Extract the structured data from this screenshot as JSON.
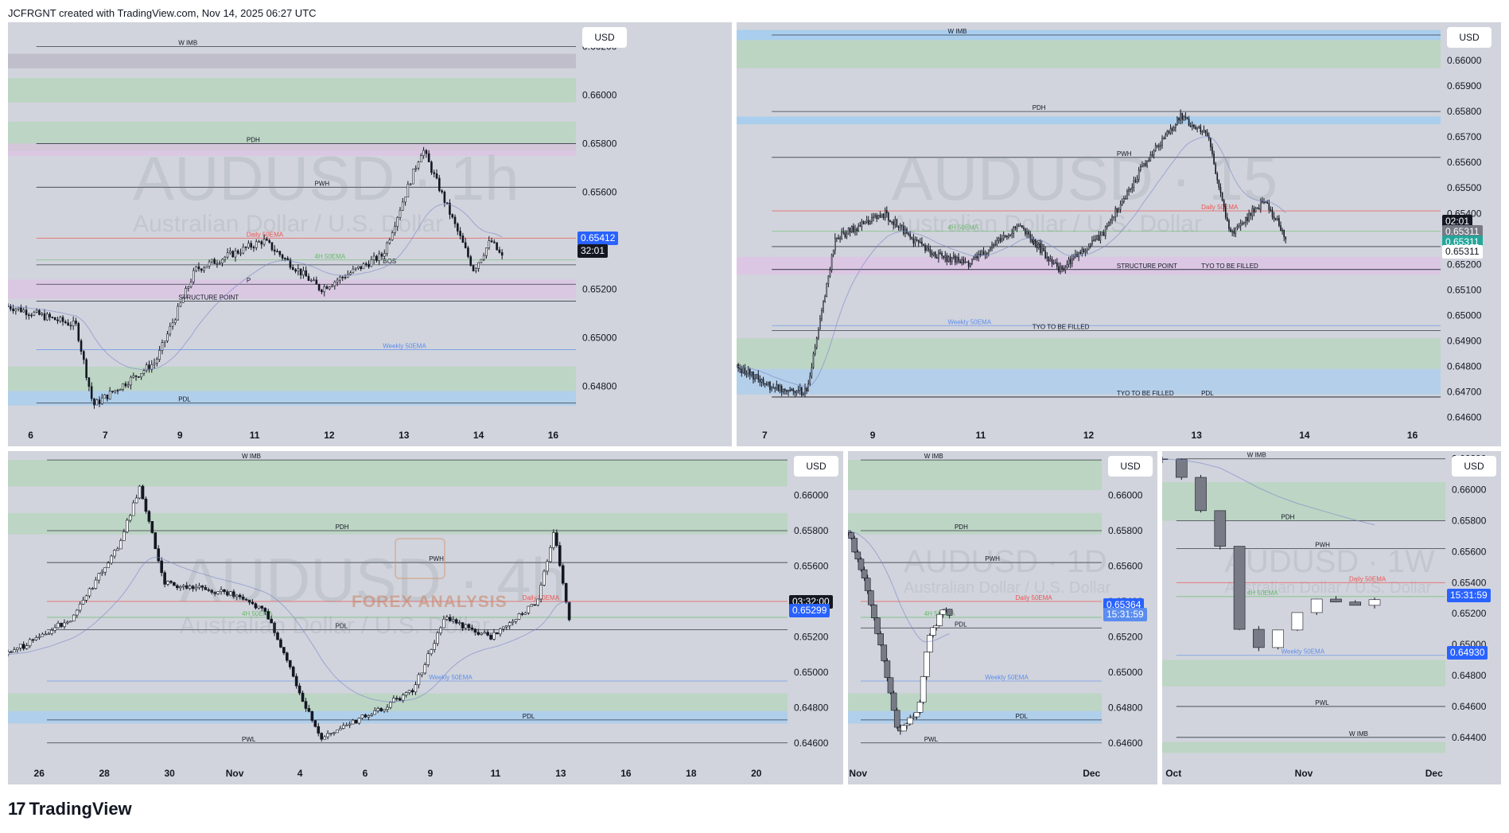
{
  "header": {
    "credit": "JCFRGNT created with TradingView.com, Nov 14, 2025 06:27 UTC"
  },
  "footer": {
    "brand": "TradingView"
  },
  "overlay": {
    "forex_analysis": "FOREX ANALYSIS"
  },
  "colors": {
    "bg": "#d1d4dc",
    "up": "#ffffff",
    "down": "#131722",
    "demand_zone": "#a5d6a7",
    "supply_zone": "#e1bee7",
    "blue_zone": "#90caf9",
    "ema": "#7986cb",
    "daily_ema": "#ef5350",
    "h4_ema": "#66bb6a",
    "tag_blue": "#2962ff",
    "tag_green": "#26a69a",
    "tag_dark": "#131722"
  },
  "chart_data": [
    {
      "type": "candlestick",
      "symbol_watermark": "AUDUSD · 1h",
      "subtitle_watermark": "Australian Dollar / U.S. Dollar",
      "currency": "USD",
      "ylim": [
        0.6465,
        0.663
      ],
      "y_ticks": [
        "0.66200",
        "0.66000",
        "0.65800",
        "0.65600",
        "0.65400",
        "0.65200",
        "0.65000",
        "0.64800"
      ],
      "x_ticks": [
        "6",
        "7",
        "9",
        "11",
        "12",
        "13",
        "14",
        "16"
      ],
      "levels": [
        {
          "label": "W IMB",
          "price": 0.662
        },
        {
          "label": "PDH",
          "price": 0.658
        },
        {
          "label": "PWH",
          "price": 0.6562
        },
        {
          "label": "BOS",
          "price": 0.653
        },
        {
          "label": "STRUCTURE POINT",
          "price": 0.6515
        },
        {
          "label": "Daily 50EMA",
          "price": 0.6541
        },
        {
          "label": "4H 50EMA",
          "price": 0.6532
        },
        {
          "label": "Weekly 50EMA",
          "price": 0.6495
        },
        {
          "label": "PDL",
          "price": 0.6473
        },
        {
          "label": "P",
          "price": 0.6522
        }
      ],
      "price_tags": [
        {
          "text": "0.65412",
          "kind": "blue"
        },
        {
          "text": "32:01",
          "kind": "dark"
        }
      ]
    },
    {
      "type": "candlestick",
      "symbol_watermark": "AUDUSD · 15",
      "subtitle_watermark": "Australian Dollar / U.S. Dollar",
      "currency": "USD",
      "ylim": [
        0.6458,
        0.6615
      ],
      "y_ticks": [
        "0.66100",
        "0.66000",
        "0.65900",
        "0.65800",
        "0.65700",
        "0.65600",
        "0.65500",
        "0.65400",
        "0.65300",
        "0.65200",
        "0.65100",
        "0.65000",
        "0.64900",
        "0.64800",
        "0.64700",
        "0.64600"
      ],
      "x_ticks": [
        "7",
        "9",
        "11",
        "12",
        "13",
        "14",
        "16"
      ],
      "levels": [
        {
          "label": "W IMB",
          "price": 0.661
        },
        {
          "label": "PDH",
          "price": 0.658
        },
        {
          "label": "PWH",
          "price": 0.6562
        },
        {
          "label": "Daily 50EMA",
          "price": 0.6541
        },
        {
          "label": "4H 50EMA",
          "price": 0.6533
        },
        {
          "label": "PDL",
          "price": 0.6527
        },
        {
          "label": "STRUCTURE POINT",
          "price": 0.6518
        },
        {
          "label": "TYO TO BE  FILLED",
          "price": 0.6518
        },
        {
          "label": "Weekly 50EMA",
          "price": 0.6496
        },
        {
          "label": "TYO TO BE  FILLED",
          "price": 0.6494
        },
        {
          "label": "TYO TO BE  FILLED",
          "price": 0.6468
        },
        {
          "label": "PDL",
          "price": 0.6468
        }
      ],
      "price_tags": [
        {
          "text": "02:01",
          "kind": "dark"
        },
        {
          "text": "0.65311",
          "kind": "gray"
        },
        {
          "text": "0.65311",
          "kind": "green"
        },
        {
          "text": "0.65311",
          "kind": "white"
        }
      ]
    },
    {
      "type": "candlestick",
      "symbol_watermark": "AUDUSD · 4h",
      "subtitle_watermark": "Australian Dollar / U.S. Dollar",
      "currency": "USD",
      "ylim": [
        0.645,
        0.6625
      ],
      "y_ticks": [
        "0.66200",
        "0.66000",
        "0.65800",
        "0.65600",
        "0.65400",
        "0.65200",
        "0.65000",
        "0.64800",
        "0.64600"
      ],
      "x_ticks": [
        "26",
        "28",
        "30",
        "Nov",
        "4",
        "6",
        "9",
        "11",
        "13",
        "16",
        "18",
        "20"
      ],
      "levels": [
        {
          "label": "W IMB",
          "price": 0.662
        },
        {
          "label": "PDH",
          "price": 0.658
        },
        {
          "label": "PWH",
          "price": 0.6562
        },
        {
          "label": "Daily 50EMA",
          "price": 0.654
        },
        {
          "label": "4H 50EMA",
          "price": 0.6531
        },
        {
          "label": "PDL",
          "price": 0.6524
        },
        {
          "label": "Weekly 50EMA",
          "price": 0.6495
        },
        {
          "label": "PDL",
          "price": 0.6473
        },
        {
          "label": "PWL",
          "price": 0.646
        }
      ],
      "price_tags": [
        {
          "text": "03:32:00",
          "kind": "dark"
        },
        {
          "text": "0.65299",
          "kind": "blue"
        }
      ]
    },
    {
      "type": "candlestick",
      "symbol_watermark": "AUDUSD · 1D",
      "subtitle_watermark": "Australian Dollar / U.S. Dollar",
      "currency": "USD",
      "ylim": [
        0.645,
        0.6625
      ],
      "y_ticks": [
        "0.66200",
        "0.66000",
        "0.65800",
        "0.65600",
        "0.65400",
        "0.65200",
        "0.65000",
        "0.64800",
        "0.64600"
      ],
      "x_ticks": [
        "Nov",
        "Dec"
      ],
      "levels": [
        {
          "label": "W IMB",
          "price": 0.662
        },
        {
          "label": "PDH",
          "price": 0.658
        },
        {
          "label": "PWH",
          "price": 0.6562
        },
        {
          "label": "Daily 50EMA",
          "price": 0.654
        },
        {
          "label": "4H 50EMA",
          "price": 0.6531
        },
        {
          "label": "PDL",
          "price": 0.6525
        },
        {
          "label": "Weekly 50EMA",
          "price": 0.6495
        },
        {
          "label": "PDL",
          "price": 0.6473
        },
        {
          "label": "PWL",
          "price": 0.646
        }
      ],
      "price_tags": [
        {
          "text": "0.65364",
          "kind": "blue"
        },
        {
          "text": "15:31:59",
          "kind": "lightblue"
        }
      ]
    },
    {
      "type": "candlestick",
      "symbol_watermark": "AUDUSD · 1W",
      "subtitle_watermark": "Australian Dollar / U.S. Dollar",
      "currency": "USD",
      "ylim": [
        0.6425,
        0.6625
      ],
      "y_ticks": [
        "0.66200",
        "0.66000",
        "0.65800",
        "0.65600",
        "0.65400",
        "0.65200",
        "0.65000",
        "0.64800",
        "0.64600",
        "0.64400"
      ],
      "x_ticks": [
        "Oct",
        "Nov",
        "Dec"
      ],
      "levels": [
        {
          "label": "W IMB",
          "price": 0.662
        },
        {
          "label": "PDH",
          "price": 0.658
        },
        {
          "label": "PWH",
          "price": 0.6562
        },
        {
          "label": "Daily 50EMA",
          "price": 0.654
        },
        {
          "label": "4H 50EMA",
          "price": 0.6531
        },
        {
          "label": "Weekly 50EMA",
          "price": 0.6493
        },
        {
          "label": "PWL",
          "price": 0.646
        },
        {
          "label": "W IMB",
          "price": 0.644
        }
      ],
      "price_tags": [
        {
          "text": "15:31:59",
          "kind": "blue"
        },
        {
          "text": "0.64930",
          "kind": "blue"
        }
      ]
    }
  ]
}
